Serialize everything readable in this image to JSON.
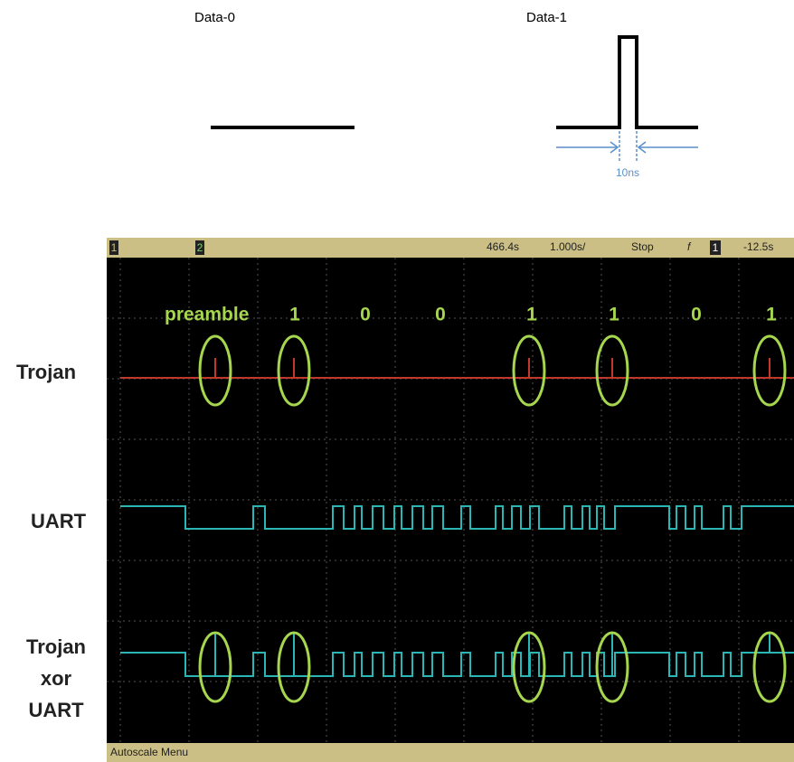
{
  "data0": {
    "label": "Data-0"
  },
  "data1": {
    "label": "Data-1",
    "width_label": "10ns"
  },
  "scope": {
    "status": {
      "channel_1": "1",
      "channel_2": "2",
      "delay": "466.4s",
      "timebase": "1.000s/",
      "state": "Stop",
      "trigger_slope": "f",
      "trigger_channel": "1",
      "trigger_level": "-12.5s"
    },
    "bits": {
      "preamble": "preamble",
      "values": [
        "1",
        "0",
        "0",
        "1",
        "1",
        "0",
        "1"
      ]
    },
    "signals": [
      "Trojan",
      "UART"
    ],
    "xor_label": [
      "Trojan",
      "xor",
      "UART"
    ],
    "footer": "Autoscale Menu"
  }
}
